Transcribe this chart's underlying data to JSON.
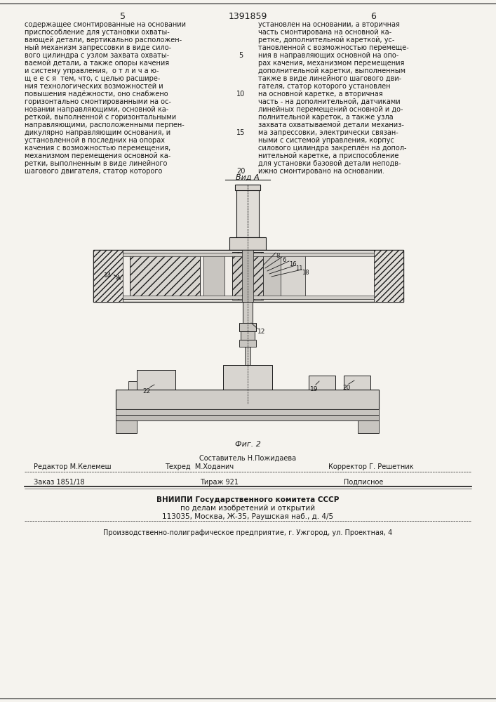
{
  "page_width": 7.07,
  "page_height": 10.0,
  "bg_color": "#f5f3ee",
  "text_color": "#1a1a1a",
  "header_page_left": "5",
  "header_title": "1391859",
  "header_page_right": "6",
  "col1_text": [
    "содержащее смонтированные на основании",
    "приспособление для установки охваты-",
    "вающей детали, вертикально расположен-",
    "ный механизм запрессовки в виде сило-",
    "вого цилиндра с узлом захвата охваты-",
    "ваемой детали, а также опоры качения",
    "и систему управления,  о т л и ч а ю-",
    "щ е е с я  тем, что, с целью расшире-",
    "ния технологических возможностей и",
    "повышения надёжности, оно снабжено",
    "горизонтально смонтированными на ос-",
    "новании направляющими, основной ка-",
    "реткой, выполненной с горизонтальными",
    "направляющими, расположенными перпен-",
    "дикулярно направляющим основания, и",
    "установленной в последних на опорах",
    "качения с возможностью перемещения,",
    "механизмом перемещения основной ка-",
    "ретки, выполненным в виде линейного",
    "шагового двигателя, статор которого"
  ],
  "col2_text": [
    "установлен на основании, а вторичная",
    "часть смонтирована на основной ка-",
    "ретке, дополнительной кареткой, ус-",
    "тановленной с возможностью перемеще-",
    "ния в направляющих основной на опо-",
    "рах качения, механизмом перемещения",
    "дополнительной каретки, выполненным",
    "также в виде линейного шагового дви-",
    "гателя, статор которого установлен",
    "на основной каретке, а вторичная",
    "часть - на дополнительной, датчиками",
    "линейных перемещений основной и до-",
    "полнительной кареток, а также узла",
    "захвата охватываемой детали механиз-",
    "ма запрессовки, электрически связан-",
    "ными с системой управления, корпус",
    "силового цилиндра закреплён на допол-",
    "нительной каретке, а приспособление",
    "для установки базовой детали неподв-",
    "ижно смонтировано на основании."
  ],
  "line_numbers": [
    5,
    10,
    15,
    20
  ],
  "view_label": "Вид А",
  "fig_label": "Фиг. 2",
  "staff_comp": "Составитель Н.Пожидаева",
  "staff_editor": "Редактор М.Келемеш",
  "staff_tech": "Техред  М.Ходанич",
  "staff_corr": "Корректор Г. Решетник",
  "order": "Заказ 1851/18",
  "tirazh": "Тираж 921",
  "podp": "Подписное",
  "org1": "ВНИИПИ Государственного комитета СССР",
  "org2": "по делам изобретений и открытий",
  "org3": "113035, Москва, Ж-35, Раушская наб., д. 4/5",
  "prod": "Производственно-полиграфическое предприятие, г. Ужгород, ул. Проектная, 4"
}
